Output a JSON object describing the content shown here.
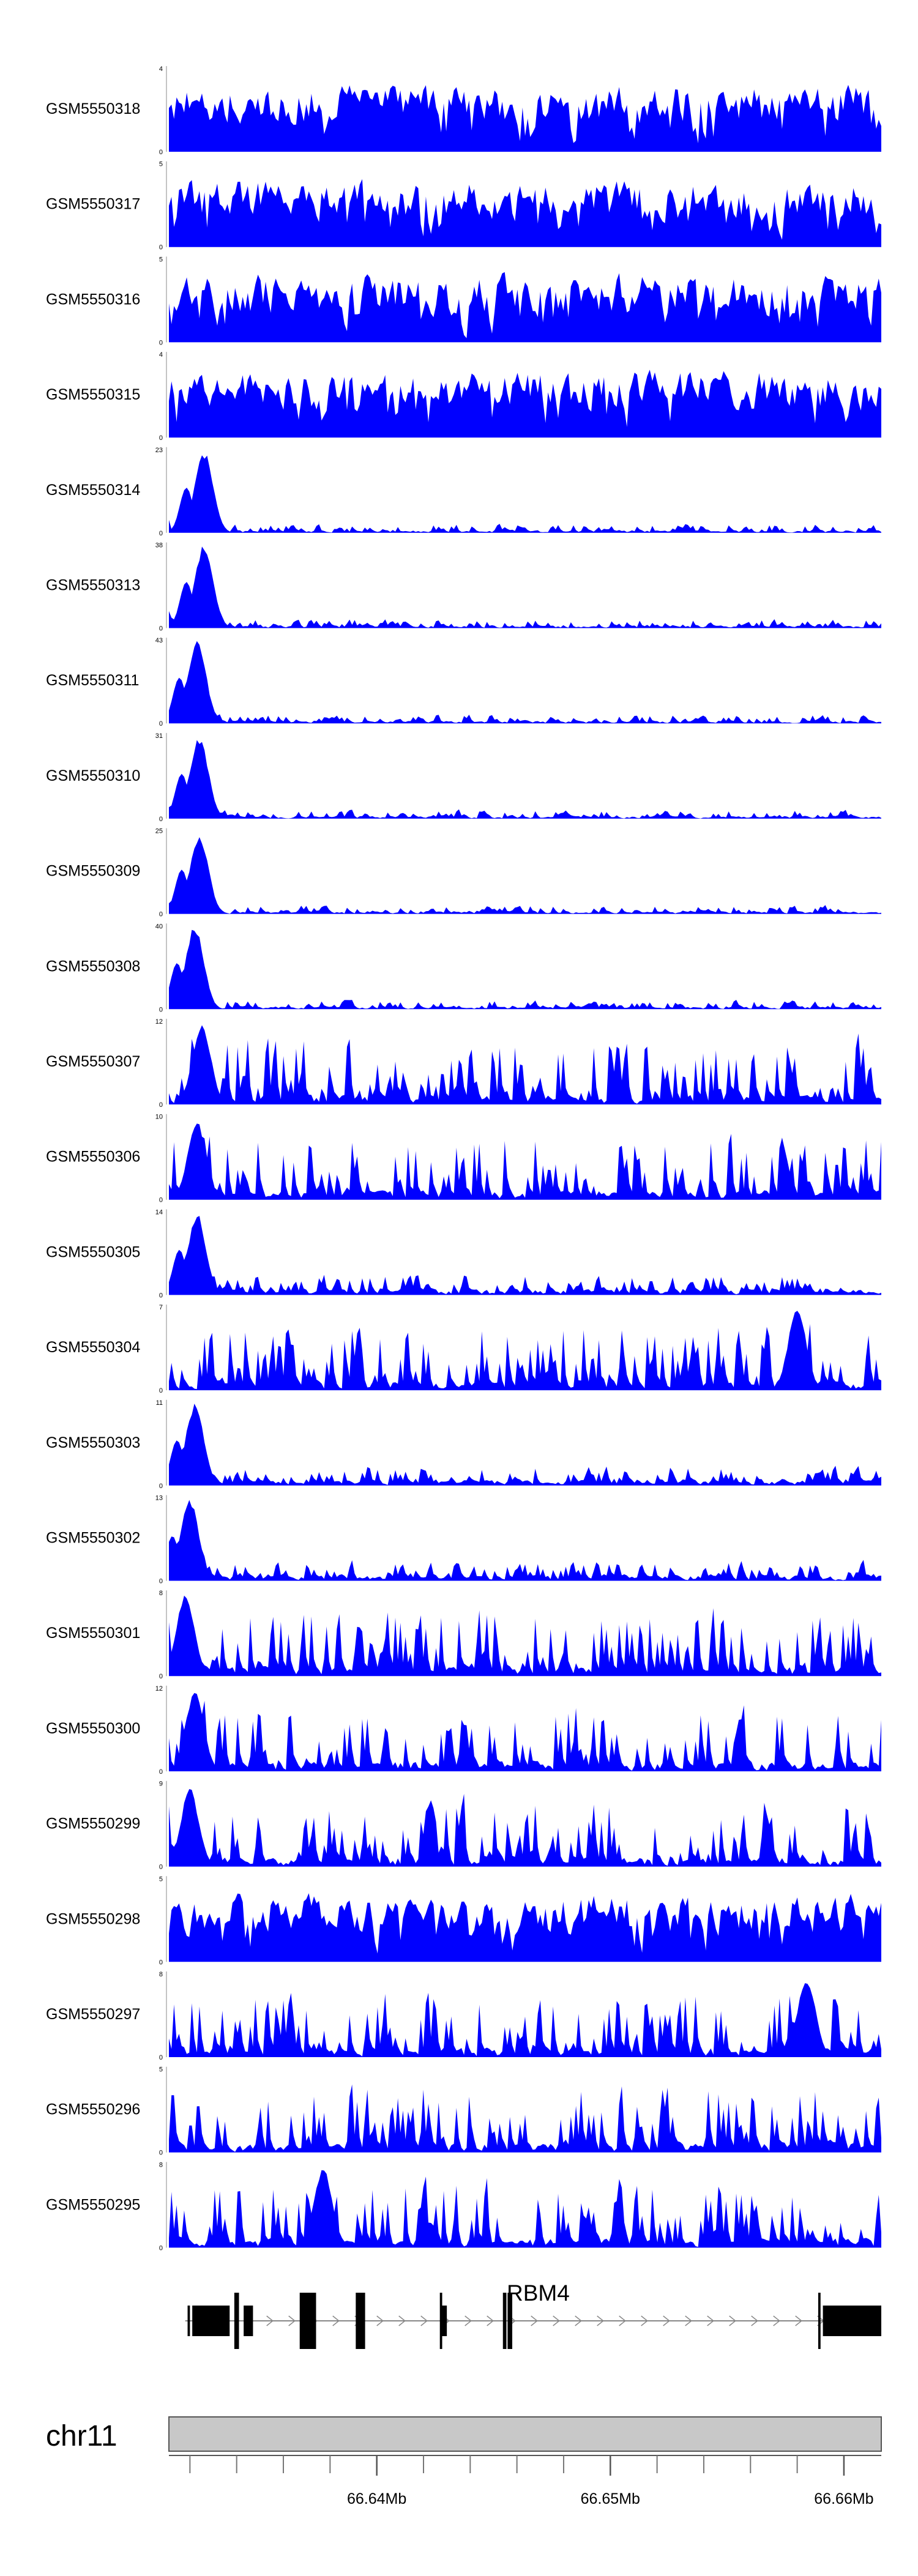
{
  "chart_data": {
    "type": "area",
    "chromosome": "chr11",
    "x_unit": "Mb",
    "xlim": [
      66.6311,
      66.6616
    ],
    "colors": {
      "track_fill": "#0000ff",
      "ideogram_fill": "#c8c8c8",
      "gene_color": "#000000"
    },
    "axis_ticks": [
      {
        "value": 66.64,
        "label": "66.64Mb"
      },
      {
        "value": 66.65,
        "label": "66.65Mb"
      },
      {
        "value": 66.66,
        "label": "66.66Mb"
      }
    ],
    "tracks": [
      {
        "name": "GSM5550318",
        "ymax": "4",
        "ymin": "0",
        "max": 4,
        "peak_pos": null,
        "peak_frac": 0,
        "profile": "uniform",
        "seed": 318
      },
      {
        "name": "GSM5550317",
        "ymax": "5",
        "ymin": "0",
        "max": 5,
        "peak_pos": null,
        "peak_frac": 0,
        "profile": "uniform",
        "seed": 317
      },
      {
        "name": "GSM5550316",
        "ymax": "5",
        "ymin": "0",
        "max": 5,
        "peak_pos": null,
        "peak_frac": 0,
        "profile": "uniform",
        "seed": 316
      },
      {
        "name": "GSM5550315",
        "ymax": "4",
        "ymin": "0",
        "max": 4,
        "peak_pos": null,
        "peak_frac": 0,
        "profile": "uniform",
        "seed": 315
      },
      {
        "name": "GSM5550314",
        "ymax": "23",
        "ymin": "0",
        "max": 23,
        "peak_pos": 66.6326,
        "peak_frac": 0.96,
        "profile": "peak",
        "seed": 314
      },
      {
        "name": "GSM5550313",
        "ymax": "38",
        "ymin": "0",
        "max": 38,
        "peak_pos": 66.6326,
        "peak_frac": 0.98,
        "profile": "peak",
        "seed": 313
      },
      {
        "name": "GSM5550311",
        "ymax": "43",
        "ymin": "0",
        "max": 43,
        "peak_pos": 66.6323,
        "peak_frac": 0.97,
        "profile": "peak",
        "seed": 311
      },
      {
        "name": "GSM5550310",
        "ymax": "31",
        "ymin": "0",
        "max": 31,
        "peak_pos": 66.6324,
        "peak_frac": 0.95,
        "profile": "peak",
        "seed": 310
      },
      {
        "name": "GSM5550309",
        "ymax": "25",
        "ymin": "0",
        "max": 25,
        "peak_pos": 66.6324,
        "peak_frac": 0.94,
        "profile": "peak",
        "seed": 309
      },
      {
        "name": "GSM5550308",
        "ymax": "40",
        "ymin": "0",
        "max": 40,
        "peak_pos": 66.6322,
        "peak_frac": 0.98,
        "profile": "peak",
        "seed": 308
      },
      {
        "name": "GSM5550307",
        "ymax": "12",
        "ymin": "0",
        "max": 12,
        "peak_pos": 66.6325,
        "peak_frac": 0.95,
        "profile": "spiky",
        "seed": 307
      },
      {
        "name": "GSM5550306",
        "ymax": "10",
        "ymin": "0",
        "max": 10,
        "peak_pos": 66.6323,
        "peak_frac": 0.95,
        "profile": "spiky",
        "seed": 306
      },
      {
        "name": "GSM5550305",
        "ymax": "14",
        "ymin": "0",
        "max": 14,
        "peak_pos": 66.6323,
        "peak_frac": 0.96,
        "profile": "peakmid",
        "seed": 305
      },
      {
        "name": "GSM5550304",
        "ymax": "7",
        "ymin": "0",
        "max": 7,
        "peak_pos": 66.658,
        "peak_frac": 0.95,
        "profile": "spiky",
        "seed": 304
      },
      {
        "name": "GSM5550303",
        "ymax": "11",
        "ymin": "0",
        "max": 11,
        "peak_pos": 66.6322,
        "peak_frac": 0.96,
        "profile": "peakmid",
        "seed": 303
      },
      {
        "name": "GSM5550302",
        "ymax": "13",
        "ymin": "0",
        "max": 13,
        "peak_pos": 66.632,
        "peak_frac": 0.95,
        "profile": "peakmid",
        "seed": 302
      },
      {
        "name": "GSM5550301",
        "ymax": "8",
        "ymin": "0",
        "max": 8,
        "peak_pos": 66.6318,
        "peak_frac": 0.95,
        "profile": "spiky",
        "seed": 301
      },
      {
        "name": "GSM5550300",
        "ymax": "12",
        "ymin": "0",
        "max": 12,
        "peak_pos": 66.6322,
        "peak_frac": 0.94,
        "profile": "spiky",
        "seed": 300
      },
      {
        "name": "GSM5550299",
        "ymax": "9",
        "ymin": "0",
        "max": 9,
        "peak_pos": 66.632,
        "peak_frac": 0.92,
        "profile": "spiky",
        "seed": 299
      },
      {
        "name": "GSM5550298",
        "ymax": "5",
        "ymin": "0",
        "max": 5,
        "peak_pos": null,
        "peak_frac": 0,
        "profile": "uniform",
        "seed": 298
      },
      {
        "name": "GSM5550297",
        "ymax": "8",
        "ymin": "0",
        "max": 8,
        "peak_pos": 66.6584,
        "peak_frac": 0.92,
        "profile": "spiky",
        "seed": 297
      },
      {
        "name": "GSM5550296",
        "ymax": "5",
        "ymin": "0",
        "max": 5,
        "peak_pos": null,
        "peak_frac": 0,
        "profile": "spiky",
        "seed": 296
      },
      {
        "name": "GSM5550295",
        "ymax": "8",
        "ymin": "0",
        "max": 8,
        "peak_pos": 66.6377,
        "peak_frac": 0.95,
        "profile": "spiky",
        "seed": 295
      }
    ],
    "gene": {
      "name": "RBM4",
      "strand": "+",
      "start": 66.6318,
      "end": 66.6616,
      "exons": [
        {
          "start": 66.6319,
          "end": 66.632,
          "kind": "utr"
        },
        {
          "start": 66.6321,
          "end": 66.6337,
          "kind": "utr"
        },
        {
          "start": 66.6339,
          "end": 66.6341,
          "kind": "cds"
        },
        {
          "start": 66.6343,
          "end": 66.6347,
          "kind": "utr"
        },
        {
          "start": 66.6367,
          "end": 66.6374,
          "kind": "cds"
        },
        {
          "start": 66.6391,
          "end": 66.6395,
          "kind": "cds"
        },
        {
          "start": 66.6427,
          "end": 66.6428,
          "kind": "cds"
        },
        {
          "start": 66.6428,
          "end": 66.643,
          "kind": "utr"
        },
        {
          "start": 66.6454,
          "end": 66.64555,
          "kind": "cds"
        },
        {
          "start": 66.6456,
          "end": 66.6458,
          "kind": "cds"
        },
        {
          "start": 66.6589,
          "end": 66.659,
          "kind": "cds"
        },
        {
          "start": 66.6591,
          "end": 66.6616,
          "kind": "utr"
        }
      ]
    }
  }
}
